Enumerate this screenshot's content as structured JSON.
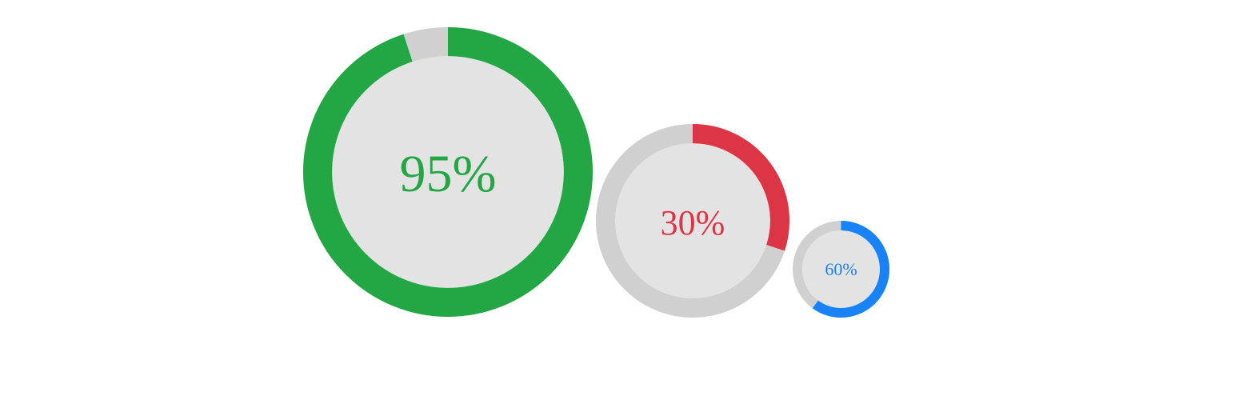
{
  "gauges": [
    {
      "percent": 95,
      "label": "95%",
      "color": "#23a745"
    },
    {
      "percent": 30,
      "label": "30%",
      "color": "#dc3545"
    },
    {
      "percent": 60,
      "label": "60%",
      "color": "#1a82f7"
    }
  ],
  "colors": {
    "track": "#d0d0d0",
    "face": "#e3e3e3"
  }
}
